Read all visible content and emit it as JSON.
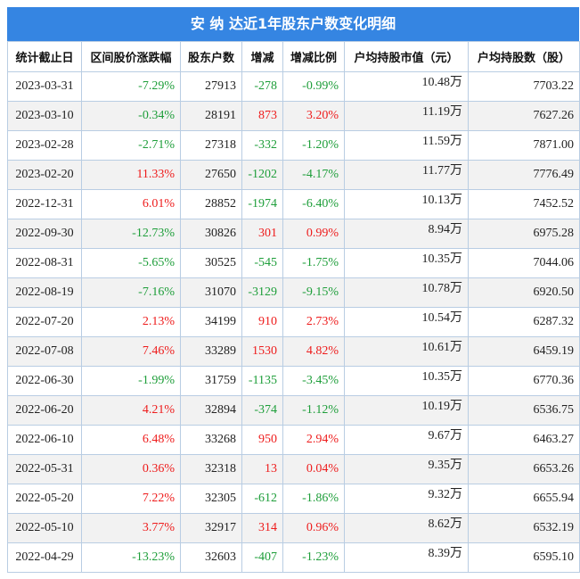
{
  "title": "安 纳 达近1年股东户数变化明细",
  "colors": {
    "header_bg": "#3585e2",
    "up": "#ee1c1c",
    "down": "#1e9e3a"
  },
  "columns": [
    "统计截止日",
    "区间股价涨跌幅",
    "股东户数",
    "增减",
    "增减比例",
    "户均持股市值（元）",
    "户均持股数（股）"
  ],
  "rows": [
    {
      "date": "2023-03-31",
      "price_change": "-7.29%",
      "holders": "27913",
      "change": "-278",
      "change_pct": "-0.99%",
      "avg_value": "10.48万",
      "avg_shares": "7703.22"
    },
    {
      "date": "2023-03-10",
      "price_change": "-0.34%",
      "holders": "28191",
      "change": "873",
      "change_pct": "3.20%",
      "avg_value": "11.19万",
      "avg_shares": "7627.26"
    },
    {
      "date": "2023-02-28",
      "price_change": "-2.71%",
      "holders": "27318",
      "change": "-332",
      "change_pct": "-1.20%",
      "avg_value": "11.59万",
      "avg_shares": "7871.00"
    },
    {
      "date": "2023-02-20",
      "price_change": "11.33%",
      "holders": "27650",
      "change": "-1202",
      "change_pct": "-4.17%",
      "avg_value": "11.77万",
      "avg_shares": "7776.49"
    },
    {
      "date": "2022-12-31",
      "price_change": "6.01%",
      "holders": "28852",
      "change": "-1974",
      "change_pct": "-6.40%",
      "avg_value": "10.13万",
      "avg_shares": "7452.52"
    },
    {
      "date": "2022-09-30",
      "price_change": "-12.73%",
      "holders": "30826",
      "change": "301",
      "change_pct": "0.99%",
      "avg_value": "8.94万",
      "avg_shares": "6975.28"
    },
    {
      "date": "2022-08-31",
      "price_change": "-5.65%",
      "holders": "30525",
      "change": "-545",
      "change_pct": "-1.75%",
      "avg_value": "10.35万",
      "avg_shares": "7044.06"
    },
    {
      "date": "2022-08-19",
      "price_change": "-7.16%",
      "holders": "31070",
      "change": "-3129",
      "change_pct": "-9.15%",
      "avg_value": "10.78万",
      "avg_shares": "6920.50"
    },
    {
      "date": "2022-07-20",
      "price_change": "2.13%",
      "holders": "34199",
      "change": "910",
      "change_pct": "2.73%",
      "avg_value": "10.54万",
      "avg_shares": "6287.32"
    },
    {
      "date": "2022-07-08",
      "price_change": "7.46%",
      "holders": "33289",
      "change": "1530",
      "change_pct": "4.82%",
      "avg_value": "10.61万",
      "avg_shares": "6459.19"
    },
    {
      "date": "2022-06-30",
      "price_change": "-1.99%",
      "holders": "31759",
      "change": "-1135",
      "change_pct": "-3.45%",
      "avg_value": "10.35万",
      "avg_shares": "6770.36"
    },
    {
      "date": "2022-06-20",
      "price_change": "4.21%",
      "holders": "32894",
      "change": "-374",
      "change_pct": "-1.12%",
      "avg_value": "10.19万",
      "avg_shares": "6536.75"
    },
    {
      "date": "2022-06-10",
      "price_change": "6.48%",
      "holders": "33268",
      "change": "950",
      "change_pct": "2.94%",
      "avg_value": "9.67万",
      "avg_shares": "6463.27"
    },
    {
      "date": "2022-05-31",
      "price_change": "0.36%",
      "holders": "32318",
      "change": "13",
      "change_pct": "0.04%",
      "avg_value": "9.35万",
      "avg_shares": "6653.26"
    },
    {
      "date": "2022-05-20",
      "price_change": "7.22%",
      "holders": "32305",
      "change": "-612",
      "change_pct": "-1.86%",
      "avg_value": "9.32万",
      "avg_shares": "6655.94"
    },
    {
      "date": "2022-05-10",
      "price_change": "3.77%",
      "holders": "32917",
      "change": "314",
      "change_pct": "0.96%",
      "avg_value": "8.62万",
      "avg_shares": "6532.19"
    },
    {
      "date": "2022-04-29",
      "price_change": "-13.23%",
      "holders": "32603",
      "change": "-407",
      "change_pct": "-1.23%",
      "avg_value": "8.39万",
      "avg_shares": "6595.10"
    }
  ]
}
